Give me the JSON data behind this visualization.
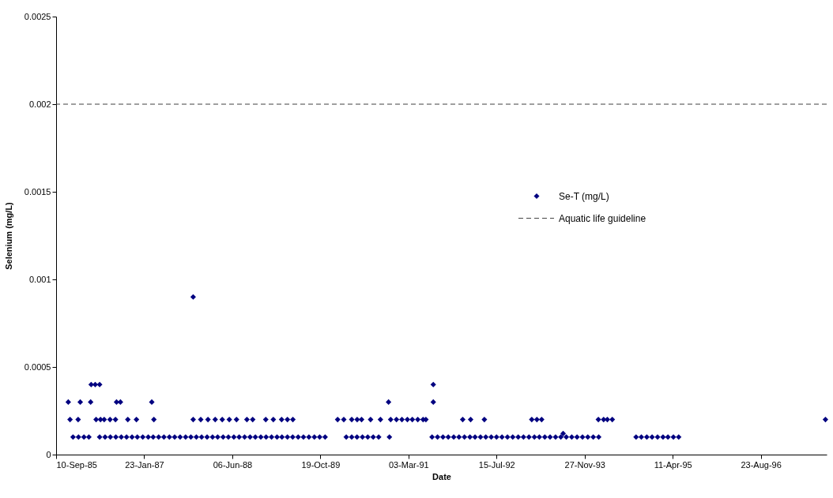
{
  "chart_data": {
    "type": "scatter",
    "xlabel": "Date",
    "ylabel": "Selenium (mg/L)",
    "xlim": [
      "1985-09-10",
      "1997-09-01"
    ],
    "ylim": [
      0,
      0.0025
    ],
    "xticks": [
      {
        "value": "1985-09-10",
        "label": "10-Sep-85"
      },
      {
        "value": "1987-01-23",
        "label": "23-Jan-87"
      },
      {
        "value": "1988-06-06",
        "label": "06-Jun-88"
      },
      {
        "value": "1989-10-19",
        "label": "19-Oct-89"
      },
      {
        "value": "1991-03-03",
        "label": "03-Mar-91"
      },
      {
        "value": "1992-07-15",
        "label": "15-Jul-92"
      },
      {
        "value": "1993-11-27",
        "label": "27-Nov-93"
      },
      {
        "value": "1995-04-11",
        "label": "11-Apr-95"
      },
      {
        "value": "1996-08-23",
        "label": "23-Aug-96"
      }
    ],
    "yticks": [
      0,
      0.0005,
      0.001,
      0.0015,
      0.002,
      0.0025
    ],
    "grid": false,
    "legend": "right",
    "marker": "diamond",
    "ref_lines": [
      {
        "axis": "y",
        "value": 0.002,
        "label": "Aquatic life guideline",
        "color": "#404040",
        "line_style": "dashed"
      }
    ],
    "series": [
      {
        "name": "Se-T (mg/L)",
        "color": "#000080",
        "x": [
          "1985-12-15",
          "1986-01-15",
          "1986-02-15",
          "1986-03-15",
          "1986-05-15",
          "1986-06-15",
          "1986-07-15",
          "1986-08-15",
          "1986-09-15",
          "1986-10-15",
          "1986-11-15",
          "1986-12-15",
          "1987-01-15",
          "1987-02-15",
          "1987-03-15",
          "1987-04-15",
          "1987-05-15",
          "1987-06-15",
          "1987-07-15",
          "1987-08-15",
          "1987-09-15",
          "1987-10-15",
          "1987-11-15",
          "1987-12-15",
          "1988-01-15",
          "1988-02-15",
          "1988-03-15",
          "1988-04-15",
          "1988-05-15",
          "1988-06-15",
          "1988-07-15",
          "1988-08-15",
          "1988-09-15",
          "1988-10-15",
          "1988-11-15",
          "1988-12-15",
          "1989-01-15",
          "1989-02-15",
          "1989-03-15",
          "1989-04-15",
          "1989-05-15",
          "1989-06-15",
          "1989-07-15",
          "1989-08-15",
          "1989-09-15",
          "1989-10-15",
          "1989-11-15",
          "1990-03-15",
          "1990-04-15",
          "1990-05-15",
          "1990-06-15",
          "1990-07-15",
          "1990-08-15",
          "1990-09-15",
          "1990-11-15",
          "1991-07-15",
          "1991-08-15",
          "1991-09-15",
          "1991-10-15",
          "1991-11-15",
          "1991-12-15",
          "1992-01-15",
          "1992-02-15",
          "1992-03-15",
          "1992-04-15",
          "1992-05-15",
          "1992-06-15",
          "1992-07-15",
          "1992-08-15",
          "1992-09-15",
          "1992-10-15",
          "1992-11-15",
          "1992-12-15",
          "1993-01-15",
          "1993-02-15",
          "1993-03-15",
          "1993-04-15",
          "1993-05-15",
          "1993-06-15",
          "1993-07-15",
          "1993-08-15",
          "1993-09-15",
          "1993-10-15",
          "1993-11-15",
          "1993-12-15",
          "1994-01-15",
          "1994-02-15",
          "1994-09-15",
          "1994-10-15",
          "1994-11-15",
          "1994-12-15",
          "1995-01-15",
          "1995-02-15",
          "1995-03-15",
          "1995-04-15",
          "1995-05-15",
          "1993-07-28",
          "1985-11-28",
          "1986-01-13",
          "1986-04-25",
          "1986-05-20",
          "1986-06-10",
          "1986-07-13",
          "1986-08-13",
          "1986-10-22",
          "1986-12-10",
          "1987-03-19",
          "1987-10-28",
          "1987-12-10",
          "1988-01-20",
          "1988-03-01",
          "1988-04-10",
          "1988-05-20",
          "1988-06-30",
          "1988-08-28",
          "1988-09-30",
          "1988-12-13",
          "1989-01-25",
          "1989-03-13",
          "1989-04-15",
          "1989-05-16",
          "1990-01-25",
          "1990-03-01",
          "1990-04-15",
          "1990-05-16",
          "1990-06-10",
          "1990-07-31",
          "1990-09-25",
          "1990-11-22",
          "1990-12-25",
          "1991-01-25",
          "1991-02-25",
          "1991-03-25",
          "1991-04-25",
          "1991-05-25",
          "1991-06-10",
          "1992-01-05",
          "1992-02-19",
          "1992-05-07",
          "1993-01-31",
          "1993-03-01",
          "1993-03-28",
          "1994-02-13",
          "1994-03-15",
          "1994-04-05",
          "1994-05-03",
          "1997-08-25",
          "1985-11-18",
          "1986-01-25",
          "1986-03-25",
          "1986-08-19",
          "1986-09-10",
          "1987-03-07",
          "1990-11-10",
          "1991-07-22",
          "1986-03-28",
          "1986-04-20",
          "1986-05-15",
          "1991-07-22",
          "1987-10-28"
        ],
        "values": [
          0.0001,
          0.0001,
          0.0001,
          0.0001,
          0.0001,
          0.0001,
          0.0001,
          0.0001,
          0.0001,
          0.0001,
          0.0001,
          0.0001,
          0.0001,
          0.0001,
          0.0001,
          0.0001,
          0.0001,
          0.0001,
          0.0001,
          0.0001,
          0.0001,
          0.0001,
          0.0001,
          0.0001,
          0.0001,
          0.0001,
          0.0001,
          0.0001,
          0.0001,
          0.0001,
          0.0001,
          0.0001,
          0.0001,
          0.0001,
          0.0001,
          0.0001,
          0.0001,
          0.0001,
          0.0001,
          0.0001,
          0.0001,
          0.0001,
          0.0001,
          0.0001,
          0.0001,
          0.0001,
          0.0001,
          0.0001,
          0.0001,
          0.0001,
          0.0001,
          0.0001,
          0.0001,
          0.0001,
          0.0001,
          0.0001,
          0.0001,
          0.0001,
          0.0001,
          0.0001,
          0.0001,
          0.0001,
          0.0001,
          0.0001,
          0.0001,
          0.0001,
          0.0001,
          0.0001,
          0.0001,
          0.0001,
          0.0001,
          0.0001,
          0.0001,
          0.0001,
          0.0001,
          0.0001,
          0.0001,
          0.0001,
          0.0001,
          0.0001,
          0.0001,
          0.0001,
          0.0001,
          0.0001,
          0.0001,
          0.0001,
          0.0001,
          0.0001,
          0.0001,
          0.0001,
          0.0001,
          0.0001,
          0.0001,
          0.0001,
          0.0001,
          0.0001,
          0.00012,
          0.0002,
          0.0002,
          0.0002,
          0.0002,
          0.0002,
          0.0002,
          0.0002,
          0.0002,
          0.0002,
          0.0002,
          0.0002,
          0.0002,
          0.0002,
          0.0002,
          0.0002,
          0.0002,
          0.0002,
          0.0002,
          0.0002,
          0.0002,
          0.0002,
          0.0002,
          0.0002,
          0.0002,
          0.0002,
          0.0002,
          0.0002,
          0.0002,
          0.0002,
          0.0002,
          0.0002,
          0.0002,
          0.0002,
          0.0002,
          0.0002,
          0.0002,
          0.0002,
          0.0002,
          0.0002,
          0.0002,
          0.0002,
          0.0002,
          0.0002,
          0.0002,
          0.0002,
          0.0002,
          0.0002,
          0.0002,
          0.0002,
          0.0002,
          0.0003,
          0.0003,
          0.0003,
          0.0003,
          0.0003,
          0.0003,
          0.0003,
          0.0003,
          0.0004,
          0.0004,
          0.0004,
          0.0004,
          0.0009
        ]
      }
    ]
  }
}
